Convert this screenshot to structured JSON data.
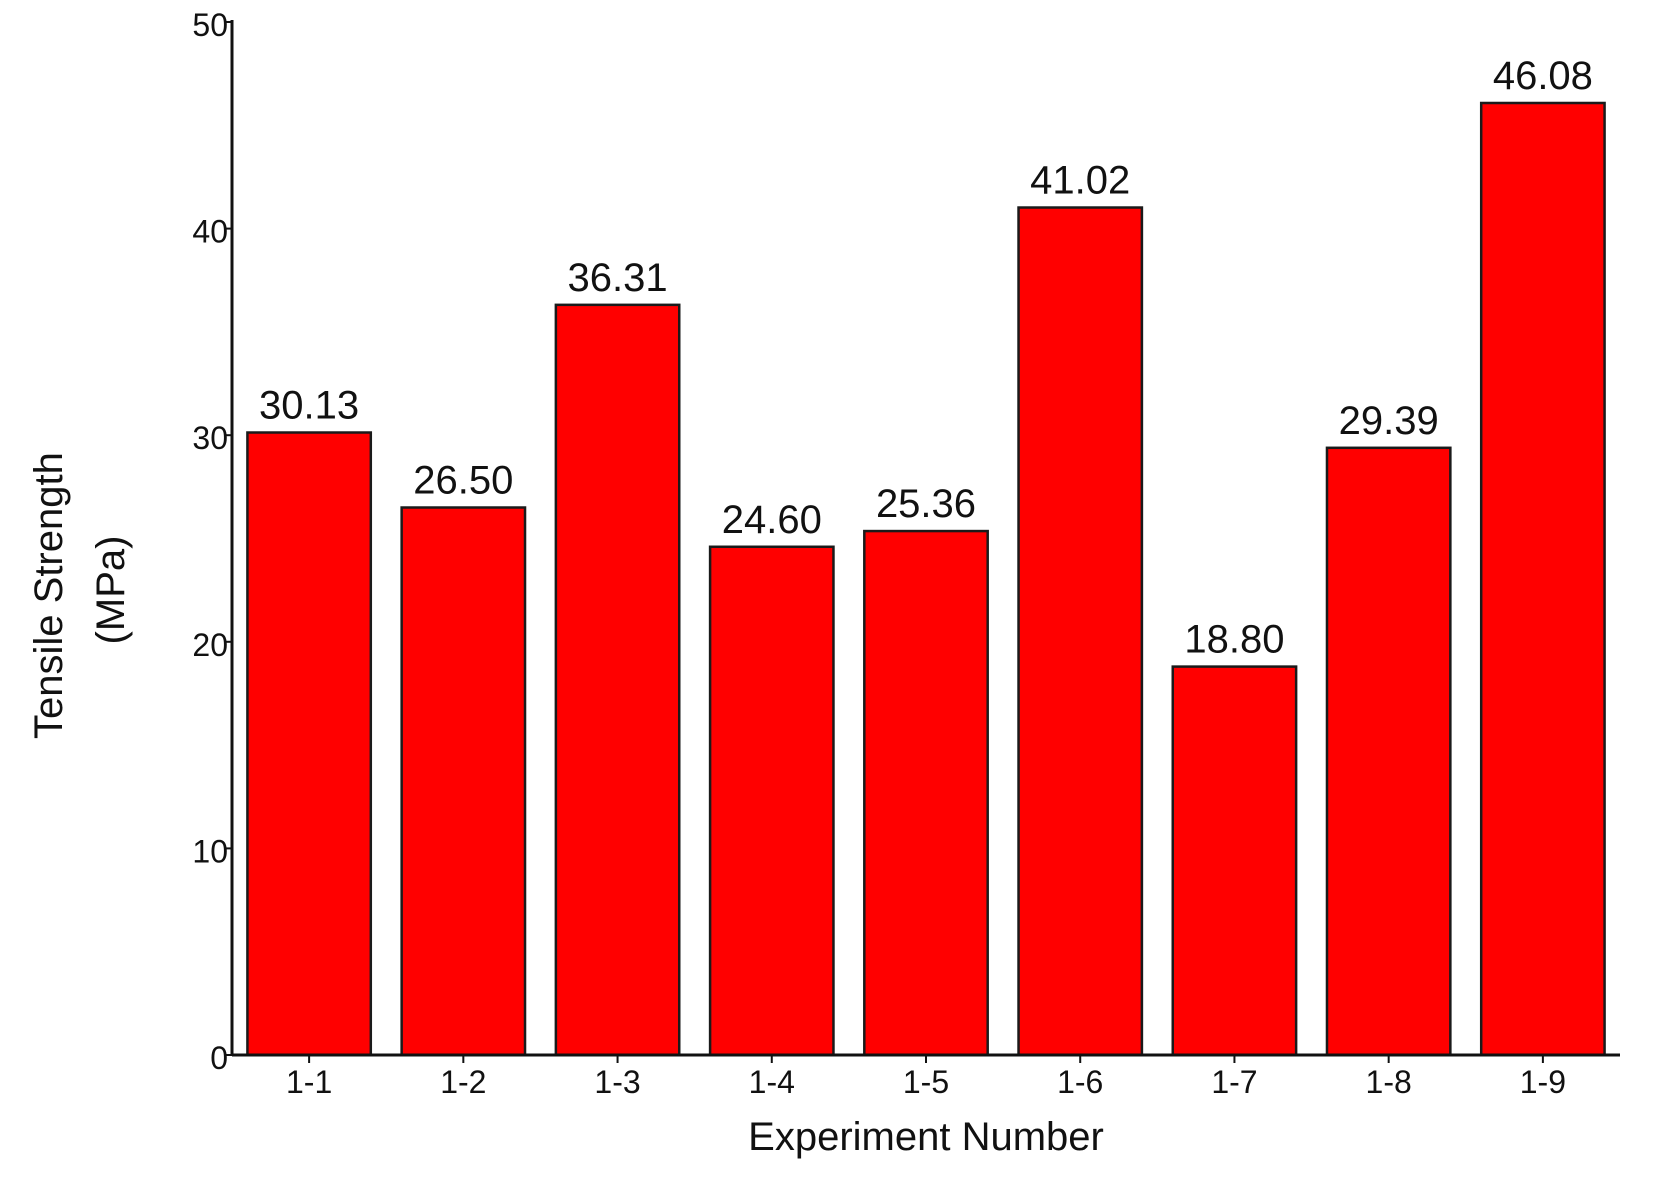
{
  "chart_data": {
    "type": "bar",
    "categories": [
      "1-1",
      "1-2",
      "1-3",
      "1-4",
      "1-5",
      "1-6",
      "1-7",
      "1-8",
      "1-9"
    ],
    "values": [
      30.13,
      26.5,
      36.31,
      24.6,
      25.36,
      41.02,
      18.8,
      29.39,
      46.08
    ],
    "data_labels": [
      "30.13",
      "26.50",
      "36.31",
      "24.60",
      "25.36",
      "41.02",
      "18.80",
      "29.39",
      "46.08"
    ],
    "title": "",
    "xlabel": "Experiment Number",
    "ylabel_lines": [
      "Tensile Strength",
      "(MPa)"
    ],
    "ylim": [
      0,
      50
    ],
    "yticks": [
      0,
      10,
      20,
      30,
      40,
      50
    ],
    "grid": false,
    "legend": "none",
    "bar_color": "#ff0000",
    "bar_edge_color": "#1a1a1a"
  }
}
